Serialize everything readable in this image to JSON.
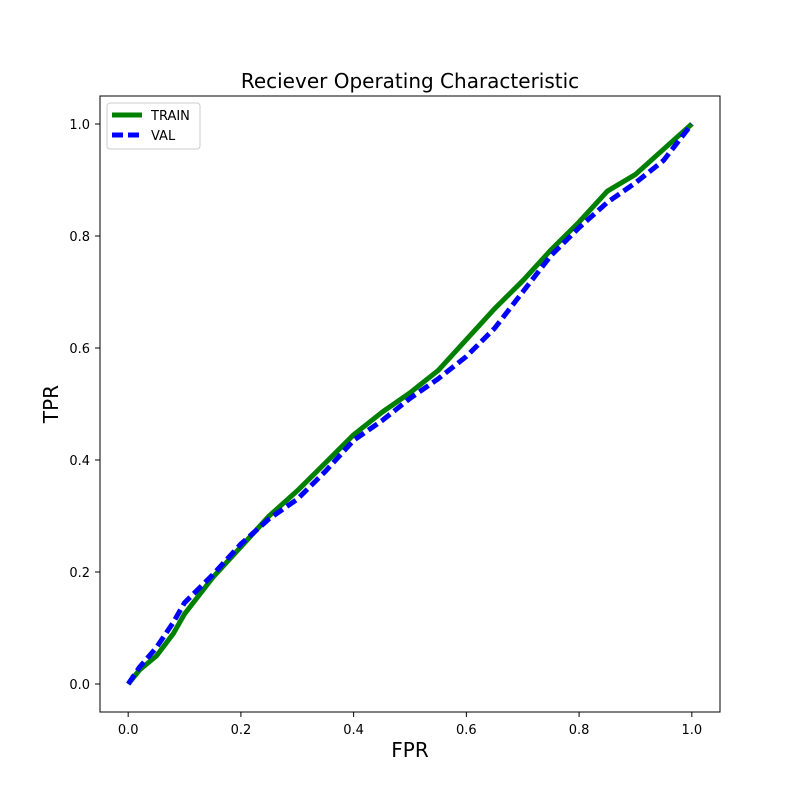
{
  "chart_data": {
    "type": "line",
    "title": "Reciever Operating Characteristic",
    "xlabel": "FPR",
    "ylabel": "TPR",
    "xlim": [
      -0.05,
      1.05
    ],
    "ylim": [
      -0.05,
      1.05
    ],
    "x_ticks": [
      "0.0",
      "0.2",
      "0.4",
      "0.6",
      "0.8",
      "1.0"
    ],
    "y_ticks": [
      "0.0",
      "0.2",
      "0.4",
      "0.6",
      "0.8",
      "1.0"
    ],
    "grid": false,
    "legend_position": "top-left",
    "series": [
      {
        "name": "TRAIN",
        "color": "#008000",
        "style": "solid",
        "x": [
          0.0,
          0.02,
          0.05,
          0.08,
          0.1,
          0.15,
          0.2,
          0.25,
          0.3,
          0.35,
          0.4,
          0.45,
          0.5,
          0.55,
          0.6,
          0.65,
          0.7,
          0.75,
          0.8,
          0.85,
          0.9,
          0.95,
          1.0
        ],
        "y": [
          0.0,
          0.025,
          0.05,
          0.09,
          0.125,
          0.19,
          0.245,
          0.3,
          0.345,
          0.395,
          0.445,
          0.485,
          0.52,
          0.56,
          0.615,
          0.67,
          0.72,
          0.775,
          0.825,
          0.88,
          0.91,
          0.955,
          1.0
        ]
      },
      {
        "name": "VAL",
        "color": "#0000ff",
        "style": "dashed",
        "x": [
          0.0,
          0.02,
          0.05,
          0.08,
          0.1,
          0.15,
          0.2,
          0.25,
          0.3,
          0.35,
          0.4,
          0.45,
          0.5,
          0.55,
          0.6,
          0.65,
          0.7,
          0.75,
          0.8,
          0.85,
          0.9,
          0.95,
          1.0
        ],
        "y": [
          0.0,
          0.03,
          0.065,
          0.11,
          0.145,
          0.195,
          0.25,
          0.295,
          0.33,
          0.38,
          0.435,
          0.47,
          0.51,
          0.545,
          0.585,
          0.635,
          0.7,
          0.765,
          0.815,
          0.86,
          0.895,
          0.935,
          1.0
        ]
      }
    ]
  }
}
